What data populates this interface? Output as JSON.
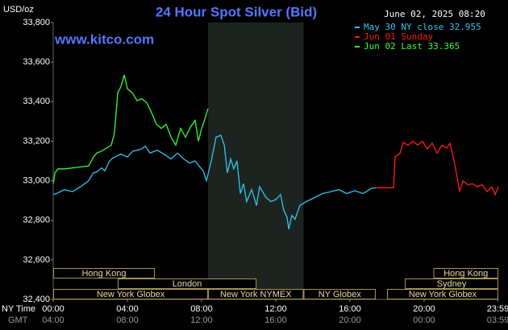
{
  "chart_data": {
    "type": "line",
    "title": "24 Hour Spot Silver (Bid)",
    "unit_label": "USD/oz",
    "timestamp": "June 02, 2025 08:20",
    "source": "www.kitco.com",
    "x_label": "NY Time",
    "x2_label": "GMT",
    "xlim": [
      0,
      24
    ],
    "ylim": [
      32400,
      33800
    ],
    "xticks": [
      {
        "value": 0,
        "label": "00:00"
      },
      {
        "value": 4,
        "label": "04:00"
      },
      {
        "value": 8,
        "label": "08:00"
      },
      {
        "value": 12,
        "label": "12:00"
      },
      {
        "value": 16,
        "label": "16:00"
      },
      {
        "value": 20,
        "label": "20:00"
      },
      {
        "value": 23.98,
        "label": "23:59"
      }
    ],
    "x2ticks": [
      {
        "value": 0,
        "label": "04:00"
      },
      {
        "value": 4,
        "label": "08:00"
      },
      {
        "value": 8,
        "label": "12:00"
      },
      {
        "value": 12,
        "label": "16:00"
      },
      {
        "value": 16,
        "label": "20:00"
      },
      {
        "value": 20,
        "label": "00:00"
      },
      {
        "value": 23.98,
        "label": "03:59"
      }
    ],
    "yticks": [
      {
        "value": 32400,
        "label": "32,400"
      },
      {
        "value": 32600,
        "label": "32,600"
      },
      {
        "value": 32800,
        "label": "32,800"
      },
      {
        "value": 33000,
        "label": "33,000"
      },
      {
        "value": 33200,
        "label": "33,200"
      },
      {
        "value": 33400,
        "label": "33,400"
      },
      {
        "value": 33600,
        "label": "33,600"
      },
      {
        "value": 33800,
        "label": "33,800"
      }
    ],
    "sessions": [
      {
        "label": "Hong Kong",
        "start": 0,
        "end": 5.48
      },
      {
        "label": "London",
        "start": 3.48,
        "end": 10.96
      },
      {
        "label": "New York Globex",
        "start": 0,
        "end": 8.35
      },
      {
        "label": "New York NYMEX",
        "start": 8.35,
        "end": 13.5
      },
      {
        "label": "NY Globex",
        "start": 13.5,
        "end": 17.39
      },
      {
        "label": "Hong Kong",
        "start": 20.5,
        "end": 24
      },
      {
        "label": "Sydney",
        "start": 18.96,
        "end": 24
      },
      {
        "label": "New York Globex",
        "start": 18,
        "end": 24
      }
    ],
    "series": [
      {
        "name": "May 30 NY close 32.955",
        "color": "#33c4f2",
        "x": [
          0,
          0.17,
          0.61,
          1.04,
          1.48,
          1.91,
          2.17,
          2.35,
          2.61,
          2.78,
          3.04,
          3.22,
          3.65,
          4,
          4.3,
          4.74,
          4.96,
          5.22,
          5.61,
          6.04,
          6.35,
          6.7,
          7.04,
          7.35,
          7.65,
          7.91,
          8.09,
          8.26,
          8.52,
          8.78,
          9.04,
          9.22,
          9.39,
          9.57,
          9.74,
          9.91,
          10.09,
          10.26,
          10.43,
          10.7,
          10.96,
          11.13,
          11.48,
          11.74,
          12,
          12.26,
          12.43,
          12.61,
          12.7,
          12.87,
          13.04,
          13.3,
          13.65,
          14.09,
          14.52,
          14.96,
          15.39,
          15.83,
          16.26,
          16.7,
          17.13,
          17.39
        ],
        "values": [
          32930,
          32935,
          32955,
          32945,
          32970,
          33000,
          33040,
          33045,
          33065,
          33050,
          33100,
          33115,
          33135,
          33120,
          33150,
          33160,
          33175,
          33140,
          33155,
          33130,
          33110,
          33140,
          33110,
          33090,
          33100,
          33070,
          33050,
          33000,
          33100,
          33220,
          33230,
          33180,
          33040,
          33110,
          33060,
          33100,
          32935,
          32985,
          32895,
          32955,
          32875,
          32970,
          32915,
          32895,
          32905,
          32930,
          32850,
          32815,
          32755,
          32825,
          32805,
          32875,
          32895,
          32915,
          32935,
          32945,
          32955,
          32935,
          32950,
          32935,
          32960,
          32965
        ]
      },
      {
        "name": "Jun 01 Sunday",
        "color": "#ff1a1a",
        "x": [
          17.39,
          18.35,
          18.43,
          18.7,
          18.87,
          19.13,
          19.39,
          19.65,
          19.91,
          20.17,
          20.43,
          20.7,
          20.96,
          21.22,
          21.39,
          21.57,
          21.74,
          21.91,
          22.09,
          22.35,
          22.61,
          22.87,
          23.13,
          23.39,
          23.65,
          23.83,
          24
        ],
        "values": [
          32965,
          32965,
          33120,
          33140,
          33195,
          33180,
          33200,
          33180,
          33200,
          33160,
          33190,
          33140,
          33180,
          33165,
          33190,
          33120,
          33040,
          32945,
          33000,
          32980,
          32985,
          32970,
          32980,
          32945,
          32970,
          32930,
          32970
        ]
      },
      {
        "name": "Jun 02 Last 33.365",
        "color": "#33ff33",
        "x": [
          0,
          0.09,
          0.26,
          0.61,
          1.04,
          1.48,
          1.91,
          2.17,
          2.35,
          2.61,
          2.87,
          3.13,
          3.3,
          3.48,
          3.65,
          3.83,
          4,
          4.26,
          4.52,
          4.78,
          5.04,
          5.3,
          5.57,
          5.83,
          6.09,
          6.35,
          6.61,
          6.87,
          7.13,
          7.39,
          7.65,
          7.83,
          8,
          8.17,
          8.35
        ],
        "values": [
          32985,
          33040,
          33060,
          33060,
          33065,
          33070,
          33075,
          33120,
          33140,
          33150,
          33165,
          33180,
          33240,
          33445,
          33475,
          33535,
          33465,
          33445,
          33405,
          33415,
          33395,
          33345,
          33285,
          33265,
          33285,
          33220,
          33180,
          33265,
          33220,
          33270,
          33305,
          33200,
          33265,
          33310,
          33365
        ]
      }
    ]
  }
}
